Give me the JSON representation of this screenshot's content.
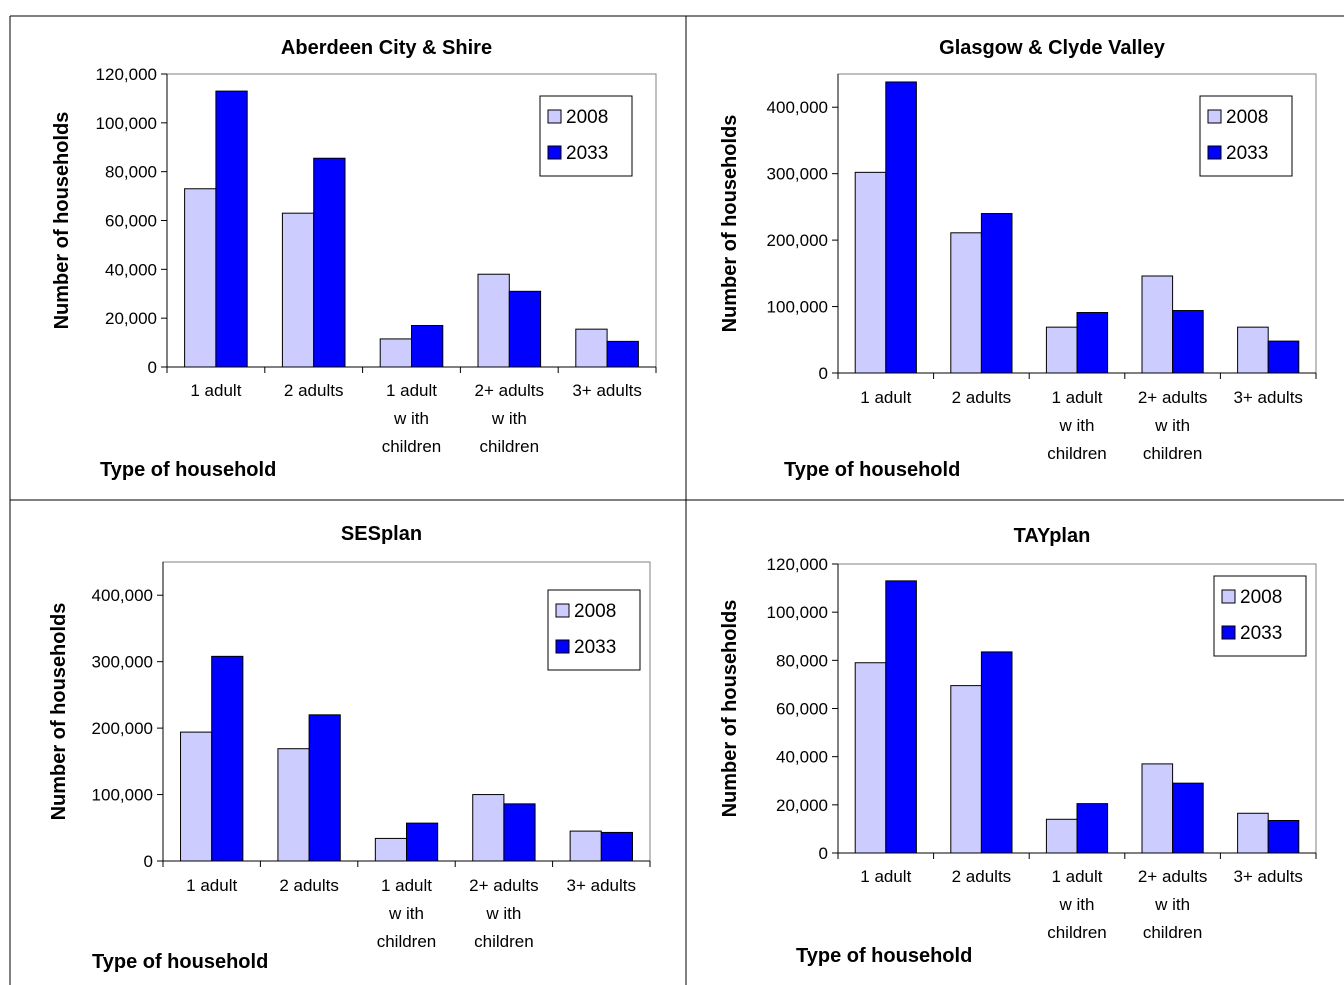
{
  "chart_data": [
    {
      "type": "bar",
      "title": "Aberdeen City & Shire",
      "xlabel": "Type of household",
      "ylabel": "Number of households",
      "categories": [
        [
          "1 adult"
        ],
        [
          "2 adults"
        ],
        [
          "1 adult",
          "w ith",
          "children"
        ],
        [
          "2+ adults",
          "w ith",
          "children"
        ],
        [
          "3+ adults"
        ]
      ],
      "series": [
        {
          "name": "2008",
          "values": [
            73000,
            63000,
            11500,
            38000,
            15500
          ]
        },
        {
          "name": "2033",
          "values": [
            113000,
            85500,
            17000,
            31000,
            10500
          ]
        }
      ],
      "ylim": [
        0,
        120000
      ],
      "yticks": [
        0,
        20000,
        40000,
        60000,
        80000,
        100000,
        120000
      ],
      "ytick_labels": [
        "0",
        "20,000",
        "40,000",
        "60,000",
        "80,000",
        "100,000",
        "120,000"
      ],
      "legend": "top-right",
      "grid": false
    },
    {
      "type": "bar",
      "title": "Glasgow & Clyde Valley",
      "xlabel": "Type of household",
      "ylabel": "Number of households",
      "categories": [
        [
          "1 adult"
        ],
        [
          "2 adults"
        ],
        [
          "1 adult",
          "w ith",
          "children"
        ],
        [
          "2+ adults",
          "w ith",
          "children"
        ],
        [
          "3+ adults"
        ]
      ],
      "series": [
        {
          "name": "2008",
          "values": [
            302000,
            211000,
            69000,
            146000,
            69000
          ]
        },
        {
          "name": "2033",
          "values": [
            438000,
            240000,
            91000,
            94000,
            48000
          ]
        }
      ],
      "ylim": [
        0,
        450000
      ],
      "yticks": [
        0,
        100000,
        200000,
        300000,
        400000
      ],
      "ytick_labels": [
        "0",
        "100,000",
        "200,000",
        "300,000",
        "400,000"
      ],
      "legend": "top-right",
      "grid": false
    },
    {
      "type": "bar",
      "title": "SESplan",
      "xlabel": "Type of household",
      "ylabel": "Number of households",
      "categories": [
        [
          "1 adult"
        ],
        [
          "2 adults"
        ],
        [
          "1 adult",
          "w ith",
          "children"
        ],
        [
          "2+ adults",
          "w ith",
          "children"
        ],
        [
          "3+ adults"
        ]
      ],
      "series": [
        {
          "name": "2008",
          "values": [
            194000,
            169000,
            34000,
            100000,
            45000
          ]
        },
        {
          "name": "2033",
          "values": [
            308000,
            220000,
            57000,
            86000,
            43000
          ]
        }
      ],
      "ylim": [
        0,
        450000
      ],
      "yticks": [
        0,
        100000,
        200000,
        300000,
        400000
      ],
      "ytick_labels": [
        "0",
        "100,000",
        "200,000",
        "300,000",
        "400,000"
      ],
      "legend": "top-right",
      "grid": false
    },
    {
      "type": "bar",
      "title": "TAYplan",
      "xlabel": "Type of household",
      "ylabel": "Number of households",
      "categories": [
        [
          "1 adult"
        ],
        [
          "2 adults"
        ],
        [
          "1 adult",
          "w ith",
          "children"
        ],
        [
          "2+ adults",
          "w ith",
          "children"
        ],
        [
          "3+ adults"
        ]
      ],
      "series": [
        {
          "name": "2008",
          "values": [
            79000,
            69500,
            14000,
            37000,
            16500
          ]
        },
        {
          "name": "2033",
          "values": [
            113000,
            83500,
            20500,
            29000,
            13500
          ]
        }
      ],
      "ylim": [
        0,
        120000
      ],
      "yticks": [
        0,
        20000,
        40000,
        60000,
        80000,
        100000,
        120000
      ],
      "ytick_labels": [
        "0",
        "20,000",
        "40,000",
        "60,000",
        "80,000",
        "100,000",
        "120,000"
      ],
      "legend": "top-right",
      "grid": false
    }
  ],
  "colors": {
    "series_2008": "#ccccff",
    "series_2033": "#0000ff",
    "axis": "#000000"
  }
}
